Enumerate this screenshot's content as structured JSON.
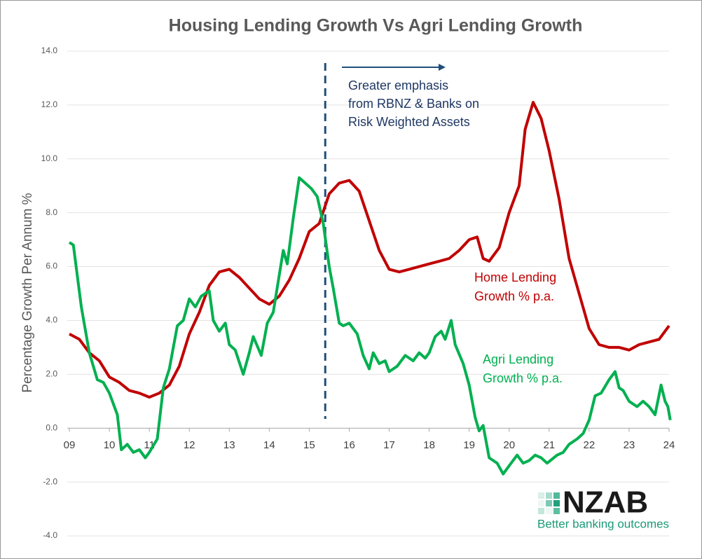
{
  "chart_data": {
    "type": "line",
    "title": "Housing Lending Growth Vs Agri Lending Growth",
    "y_label": "Percentage Growth Per Annum %",
    "xlim": [
      9,
      24
    ],
    "ylim": [
      -4,
      14
    ],
    "xticks": [
      {
        "value": 9,
        "label": "09"
      },
      10,
      11,
      12,
      13,
      14,
      15,
      16,
      17,
      18,
      19,
      20,
      21,
      22,
      23,
      24
    ],
    "yticks": [
      {
        "value": -4,
        "label": "-4.0"
      },
      {
        "value": -2,
        "label": "-2.0"
      },
      {
        "value": 0,
        "label": "0.0"
      },
      {
        "value": 2,
        "label": "2.0"
      },
      {
        "value": 4,
        "label": "4.0"
      },
      {
        "value": 6,
        "label": "6.0"
      },
      {
        "value": 8,
        "label": "8.0"
      },
      {
        "value": 10,
        "label": "10.0"
      },
      {
        "value": 12,
        "label": "12.0"
      },
      {
        "value": 14,
        "label": "14.0"
      }
    ],
    "grid": true,
    "vline": 15.4,
    "annotation": [
      "Greater emphasis",
      "from RBNZ & Banks on",
      "Risk Weighted Assets"
    ],
    "series": [
      {
        "label": [
          "Home Lending",
          "Growth % p.a."
        ],
        "color": "#c00000",
        "x": [
          9.0,
          9.25,
          9.5,
          9.75,
          10.0,
          10.25,
          10.5,
          10.75,
          11.0,
          11.25,
          11.5,
          11.75,
          12.0,
          12.25,
          12.5,
          12.75,
          13.0,
          13.25,
          13.5,
          13.75,
          14.0,
          14.25,
          14.5,
          14.75,
          15.0,
          15.25,
          15.5,
          15.75,
          16.0,
          16.25,
          16.5,
          16.75,
          17.0,
          17.25,
          17.5,
          17.75,
          18.0,
          18.25,
          18.5,
          18.75,
          19.0,
          19.2,
          19.35,
          19.5,
          19.75,
          20.0,
          20.25,
          20.4,
          20.6,
          20.8,
          21.0,
          21.25,
          21.5,
          21.75,
          22.0,
          22.25,
          22.5,
          22.75,
          23.0,
          23.25,
          23.5,
          23.75,
          24.0
        ],
        "values": [
          3.5,
          3.3,
          2.8,
          2.5,
          1.9,
          1.7,
          1.4,
          1.3,
          1.15,
          1.3,
          1.6,
          2.3,
          3.5,
          4.3,
          5.3,
          5.8,
          5.9,
          5.6,
          5.2,
          4.8,
          4.6,
          4.9,
          5.5,
          6.3,
          7.3,
          7.6,
          8.7,
          9.1,
          9.2,
          8.8,
          7.7,
          6.6,
          5.9,
          5.8,
          5.9,
          6.0,
          6.1,
          6.2,
          6.3,
          6.6,
          7.0,
          7.1,
          6.3,
          6.2,
          6.7,
          8.0,
          9.0,
          11.1,
          12.1,
          11.5,
          10.3,
          8.5,
          6.3,
          5.0,
          3.7,
          3.1,
          3.0,
          3.0,
          2.9,
          3.1,
          3.2,
          3.3,
          3.8
        ]
      },
      {
        "label": [
          "Agri Lending",
          "Growth % p.a."
        ],
        "color": "#00b050",
        "x": [
          9.0,
          9.1,
          9.3,
          9.5,
          9.7,
          9.85,
          10.0,
          10.2,
          10.3,
          10.45,
          10.6,
          10.75,
          10.9,
          11.0,
          11.2,
          11.35,
          11.5,
          11.7,
          11.85,
          12.0,
          12.15,
          12.3,
          12.5,
          12.6,
          12.75,
          12.9,
          13.0,
          13.15,
          13.35,
          13.5,
          13.6,
          13.8,
          13.95,
          14.1,
          14.35,
          14.45,
          14.6,
          14.75,
          14.9,
          15.05,
          15.2,
          15.35,
          15.5,
          15.6,
          15.75,
          15.85,
          16.0,
          16.2,
          16.35,
          16.5,
          16.6,
          16.75,
          16.9,
          17.0,
          17.2,
          17.4,
          17.6,
          17.75,
          17.9,
          18.0,
          18.15,
          18.3,
          18.4,
          18.55,
          18.65,
          18.85,
          19.0,
          19.15,
          19.25,
          19.35,
          19.5,
          19.7,
          19.85,
          20.0,
          20.2,
          20.35,
          20.5,
          20.65,
          20.8,
          20.95,
          21.2,
          21.35,
          21.5,
          21.7,
          21.85,
          22.0,
          22.15,
          22.3,
          22.5,
          22.65,
          22.75,
          22.85,
          23.0,
          23.2,
          23.35,
          23.5,
          23.65,
          23.8,
          23.9,
          23.97,
          24.03
        ],
        "values": [
          6.9,
          6.8,
          4.5,
          2.8,
          1.8,
          1.7,
          1.3,
          0.5,
          -0.8,
          -0.6,
          -0.9,
          -0.8,
          -1.1,
          -0.9,
          -0.4,
          1.5,
          2.2,
          3.8,
          4.0,
          4.8,
          4.5,
          4.9,
          5.1,
          4.0,
          3.6,
          3.9,
          3.1,
          2.9,
          2.0,
          2.8,
          3.4,
          2.7,
          3.9,
          4.3,
          6.6,
          6.1,
          7.8,
          9.3,
          9.1,
          8.9,
          8.6,
          7.6,
          6.0,
          5.2,
          3.9,
          3.8,
          3.9,
          3.5,
          2.7,
          2.2,
          2.8,
          2.4,
          2.5,
          2.1,
          2.3,
          2.7,
          2.5,
          2.8,
          2.6,
          2.8,
          3.4,
          3.6,
          3.3,
          4.0,
          3.1,
          2.4,
          1.6,
          0.4,
          -0.1,
          0.1,
          -1.1,
          -1.3,
          -1.7,
          -1.4,
          -1.0,
          -1.3,
          -1.2,
          -1.0,
          -1.1,
          -1.3,
          -1.0,
          -0.9,
          -0.6,
          -0.4,
          -0.2,
          0.3,
          1.2,
          1.3,
          1.8,
          2.1,
          1.5,
          1.4,
          1.0,
          0.8,
          1.0,
          0.8,
          0.5,
          1.6,
          1.0,
          0.8,
          0.3
        ]
      }
    ],
    "logo": {
      "text": "NZAB",
      "tagline": "Better banking outcomes"
    }
  }
}
